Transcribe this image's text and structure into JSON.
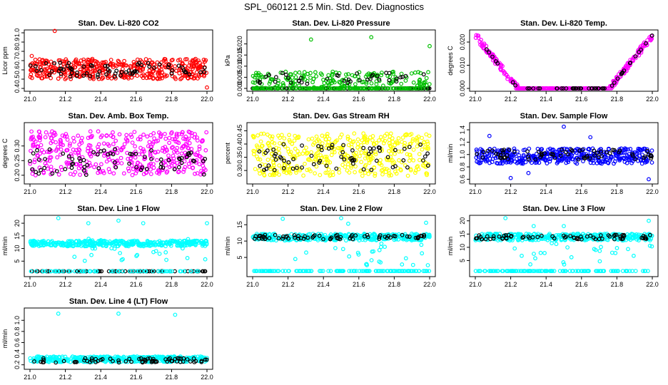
{
  "figure_title": "SPL_060121  2.5 Min. Std. Dev. Diagnostics",
  "chart_data": [
    {
      "id": "co2",
      "type": "scatter",
      "title": "Stan. Dev. Li-820 CO2",
      "ylabel": "Licor ppm",
      "color": "#ff0000",
      "xlim": [
        21.0,
        22.0
      ],
      "ylim": [
        0.4,
        1.0
      ],
      "yticks": [
        "0.4",
        "0.5",
        "0.6",
        "0.7",
        "0.8",
        "0.9",
        "1.0"
      ],
      "xticks": [
        "21.0",
        "21.2",
        "21.4",
        "21.6",
        "21.8",
        "22.0"
      ],
      "pattern": {
        "kind": "band",
        "main": [
          0.5,
          0.72
        ],
        "black": [
          0.52,
          0.68
        ],
        "outliers": [
          [
            21.14,
            1.02
          ],
          [
            21.01,
            0.75
          ],
          [
            22.0,
            0.41
          ]
        ]
      }
    },
    {
      "id": "pressure",
      "type": "scatter",
      "title": "Stan. Dev. Li-820 Pressure",
      "ylabel": "kPa",
      "color": "#00c000",
      "xlim": [
        21.0,
        22.0
      ],
      "ylim": [
        0.0,
        0.025
      ],
      "yticks": [
        "0.000",
        "0.005",
        "0.010",
        "0.015",
        "0.020"
      ],
      "xticks": [
        "21.0",
        "21.2",
        "21.4",
        "21.6",
        "21.8",
        "22.0"
      ],
      "pattern": {
        "kind": "pressure",
        "outliers": [
          [
            21.33,
            0.022
          ],
          [
            21.67,
            0.023
          ],
          [
            22.0,
            0.019
          ]
        ]
      }
    },
    {
      "id": "temp",
      "type": "scatter",
      "title": "Stan. Dev. Li-820 Temp.",
      "ylabel": "degrees C",
      "color": "#ff00ff",
      "xlim": [
        21.0,
        22.0
      ],
      "ylim": [
        0.0,
        0.024
      ],
      "yticks": [
        "0.000",
        "0.010",
        "0.020"
      ],
      "xticks": [
        "21.0",
        "21.2",
        "21.4",
        "21.6",
        "21.8",
        "22.0"
      ],
      "pattern": {
        "kind": "vshape"
      }
    },
    {
      "id": "boxtemp",
      "type": "scatter",
      "title": "Stan. Dev. Amb. Box Temp.",
      "ylabel": "degrees C",
      "color": "#ff00ff",
      "xlim": [
        21.0,
        22.0
      ],
      "ylim": [
        0.18,
        0.37
      ],
      "yticks": [
        "0.20",
        "0.25",
        "0.30"
      ],
      "xticks": [
        "21.0",
        "21.2",
        "21.4",
        "21.6",
        "21.8",
        "22.0"
      ],
      "pattern": {
        "kind": "band",
        "main": [
          0.2,
          0.35
        ],
        "black": [
          0.2,
          0.29
        ],
        "outliers": []
      }
    },
    {
      "id": "rh",
      "type": "scatter",
      "title": "Stan. Dev. Gas Stream RH",
      "ylabel": "percent",
      "color": "#ffff00",
      "xlim": [
        21.0,
        22.0
      ],
      "ylim": [
        0.26,
        0.47
      ],
      "yticks": [
        "0.30",
        "0.35",
        "0.40",
        "0.45"
      ],
      "xticks": [
        "21.0",
        "21.2",
        "21.4",
        "21.6",
        "21.8",
        "22.0"
      ],
      "pattern": {
        "kind": "band",
        "main": [
          0.28,
          0.44
        ],
        "black": [
          0.3,
          0.4
        ],
        "outliers": []
      }
    },
    {
      "id": "sampleflow",
      "type": "scatter",
      "title": "Stan. Dev. Sample Flow",
      "ylabel": "ml/min",
      "color": "#0000ff",
      "xlim": [
        21.0,
        22.0
      ],
      "ylim": [
        0.57,
        1.47
      ],
      "yticks": [
        "0.6",
        "0.8",
        "1.0",
        "1.2",
        "1.4"
      ],
      "xticks": [
        "21.0",
        "21.2",
        "21.4",
        "21.6",
        "21.8",
        "22.0"
      ],
      "pattern": {
        "kind": "band",
        "main": [
          0.85,
          1.1
        ],
        "black": [
          0.92,
          1.08
        ],
        "outliers": [
          [
            21.08,
            1.3
          ],
          [
            21.5,
            1.45
          ],
          [
            21.2,
            0.62
          ],
          [
            21.98,
            0.6
          ],
          [
            21.3,
            0.7
          ],
          [
            21.65,
            1.28
          ]
        ]
      }
    },
    {
      "id": "line1",
      "type": "scatter",
      "title": "Stan. Dev. Line 1 Flow",
      "ylabel": "ml/min",
      "color": "#00ffff",
      "xlim": [
        21.0,
        22.0
      ],
      "ylim": [
        0.0,
        22.0
      ],
      "yticks": [
        "5",
        "10",
        "15",
        "20"
      ],
      "xticks": [
        "21.0",
        "21.2",
        "21.4",
        "21.6",
        "21.8",
        "22.0"
      ],
      "pattern": {
        "kind": "line1",
        "outliers": [
          [
            21.16,
            22
          ],
          [
            21.33,
            20
          ],
          [
            21.5,
            21
          ],
          [
            21.64,
            20
          ],
          [
            22.0,
            20
          ]
        ]
      }
    },
    {
      "id": "line2",
      "type": "scatter",
      "title": "Stan. Dev. Line 2 Flow",
      "ylabel": "ml/min",
      "color": "#00ffff",
      "xlim": [
        21.0,
        22.0
      ],
      "ylim": [
        0.0,
        17.0
      ],
      "yticks": [
        "5",
        "10",
        "15"
      ],
      "xticks": [
        "21.0",
        "21.2",
        "21.4",
        "21.6",
        "21.8",
        "22.0"
      ],
      "pattern": {
        "kind": "line2",
        "outliers": [
          [
            21.17,
            16.8
          ],
          [
            21.5,
            17
          ],
          [
            21.54,
            15.3
          ],
          [
            21.98,
            15.6
          ]
        ]
      }
    },
    {
      "id": "line3",
      "type": "scatter",
      "title": "Stan. Dev. Line 3 Flow",
      "ylabel": "ml/min",
      "color": "#00ffff",
      "xlim": [
        21.0,
        22.0
      ],
      "ylim": [
        0.0,
        21.0
      ],
      "yticks": [
        "5",
        "10",
        "15",
        "20"
      ],
      "xticks": [
        "21.0",
        "21.2",
        "21.4",
        "21.6",
        "21.8",
        "22.0"
      ],
      "pattern": {
        "kind": "line2",
        "outliers": [
          [
            21.17,
            21
          ],
          [
            21.33,
            18
          ],
          [
            21.5,
            18
          ],
          [
            21.98,
            20
          ]
        ]
      }
    },
    {
      "id": "line4",
      "type": "scatter",
      "title": "Stan. Dev. Line 4 (LT) Flow",
      "ylabel": "ml/min",
      "color": "#00ffff",
      "xlim": [
        21.0,
        22.0
      ],
      "ylim": [
        0.17,
        1.17
      ],
      "yticks": [
        "0.2",
        "0.4",
        "0.6",
        "0.8",
        "1.0"
      ],
      "xticks": [
        "21.0",
        "21.2",
        "21.4",
        "21.6",
        "21.8",
        "22.0"
      ],
      "pattern": {
        "kind": "band",
        "main": [
          0.25,
          0.35
        ],
        "black": [
          0.24,
          0.32
        ],
        "outliers": [
          [
            21.16,
            1.12
          ],
          [
            21.5,
            1.12
          ],
          [
            21.82,
            1.1
          ]
        ]
      }
    }
  ]
}
